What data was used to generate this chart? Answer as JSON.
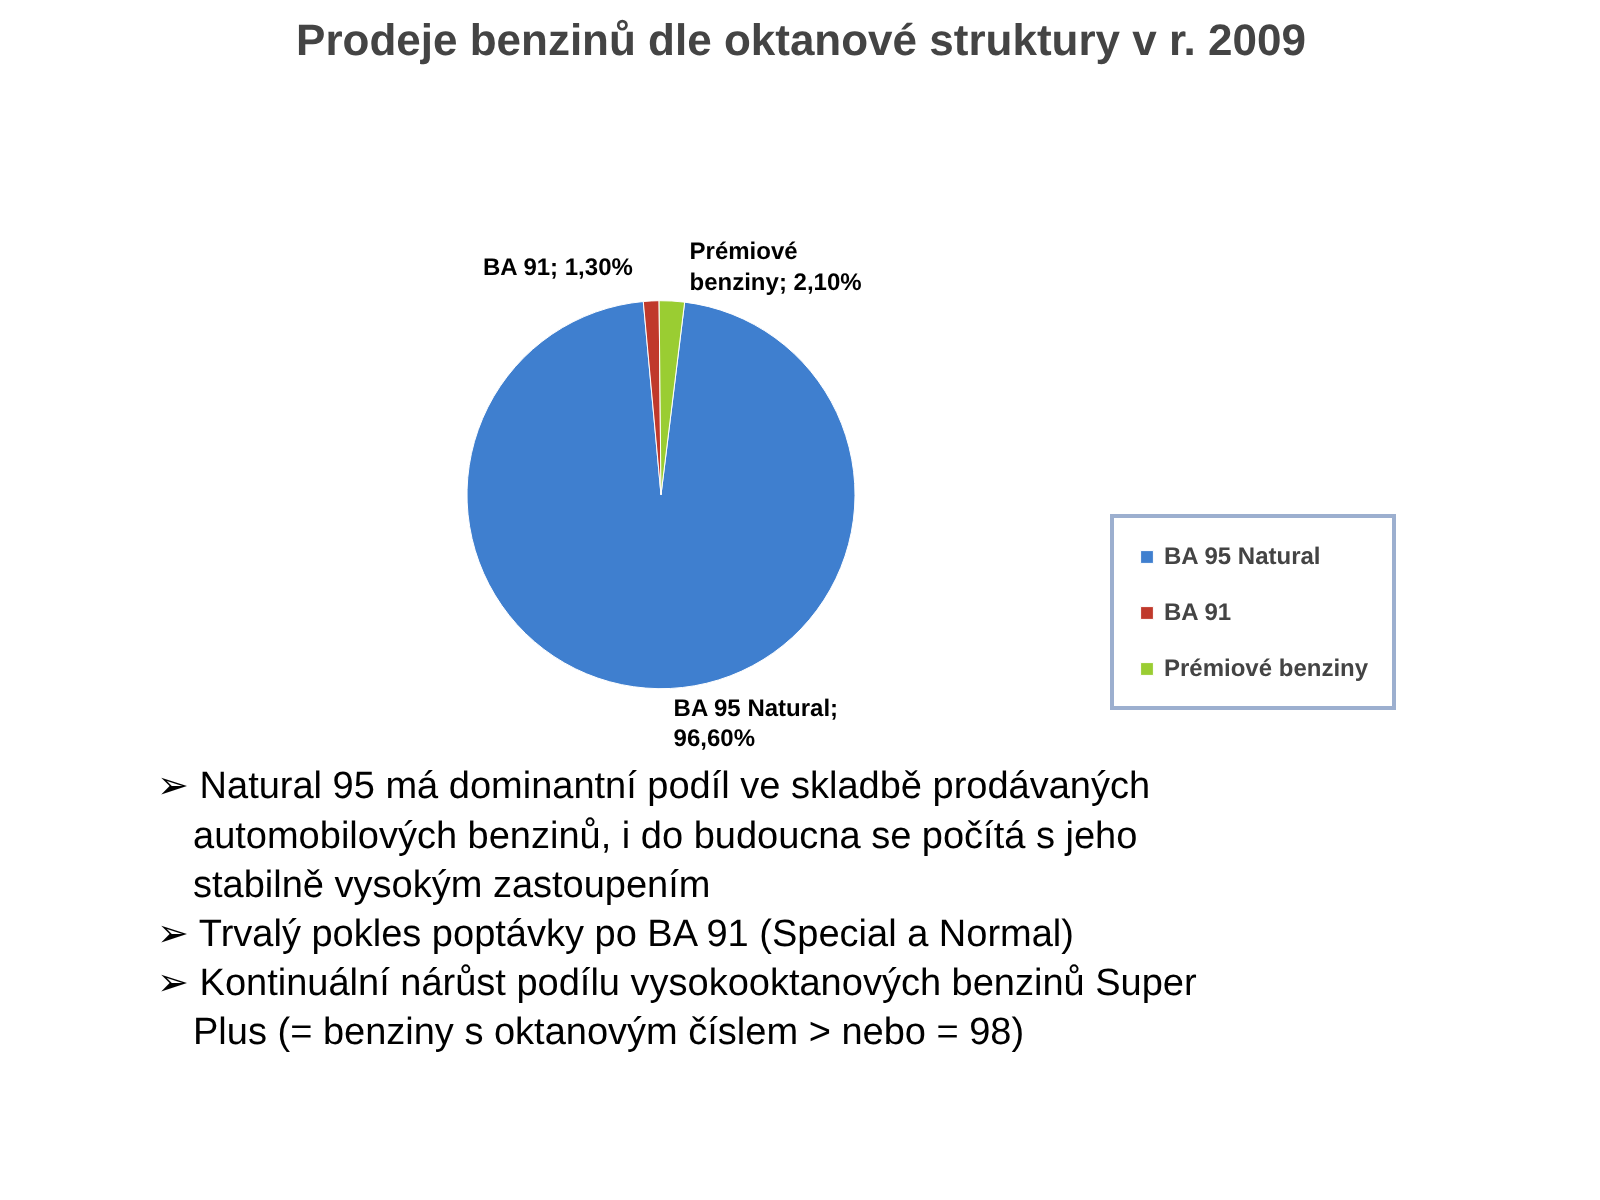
{
  "chart_data": {
    "type": "pie",
    "title": "Prodeje benzinů dle oktanové struktury v r. 2009",
    "categories": [
      "BA 95 Natural",
      "BA 91",
      "Prémiové benziny"
    ],
    "values": [
      96.6,
      1.3,
      2.1
    ],
    "colors": [
      "#3f7fcf",
      "#c0392b",
      "#9acd32"
    ],
    "value_labels": [
      "BA 95 Natural; 96,60%",
      "BA 91; 1,30%",
      "Prémiové benziny; 2,10%"
    ],
    "legend": "right",
    "annotations": [
      "➢ Natural 95 má dominantní podíl ve skladbě prodávaných automobilových benzinů, i do budoucna se počítá s jeho stabilně vysokým zastoupením",
      "➢ Trvalý pokles poptávky po BA 91 (Special a Normal)",
      "➢ Kontinuální nárůst podílu vysokooktanových benzinů Super Plus (= benziny s oktanovým číslem > nebo = 98)"
    ]
  }
}
